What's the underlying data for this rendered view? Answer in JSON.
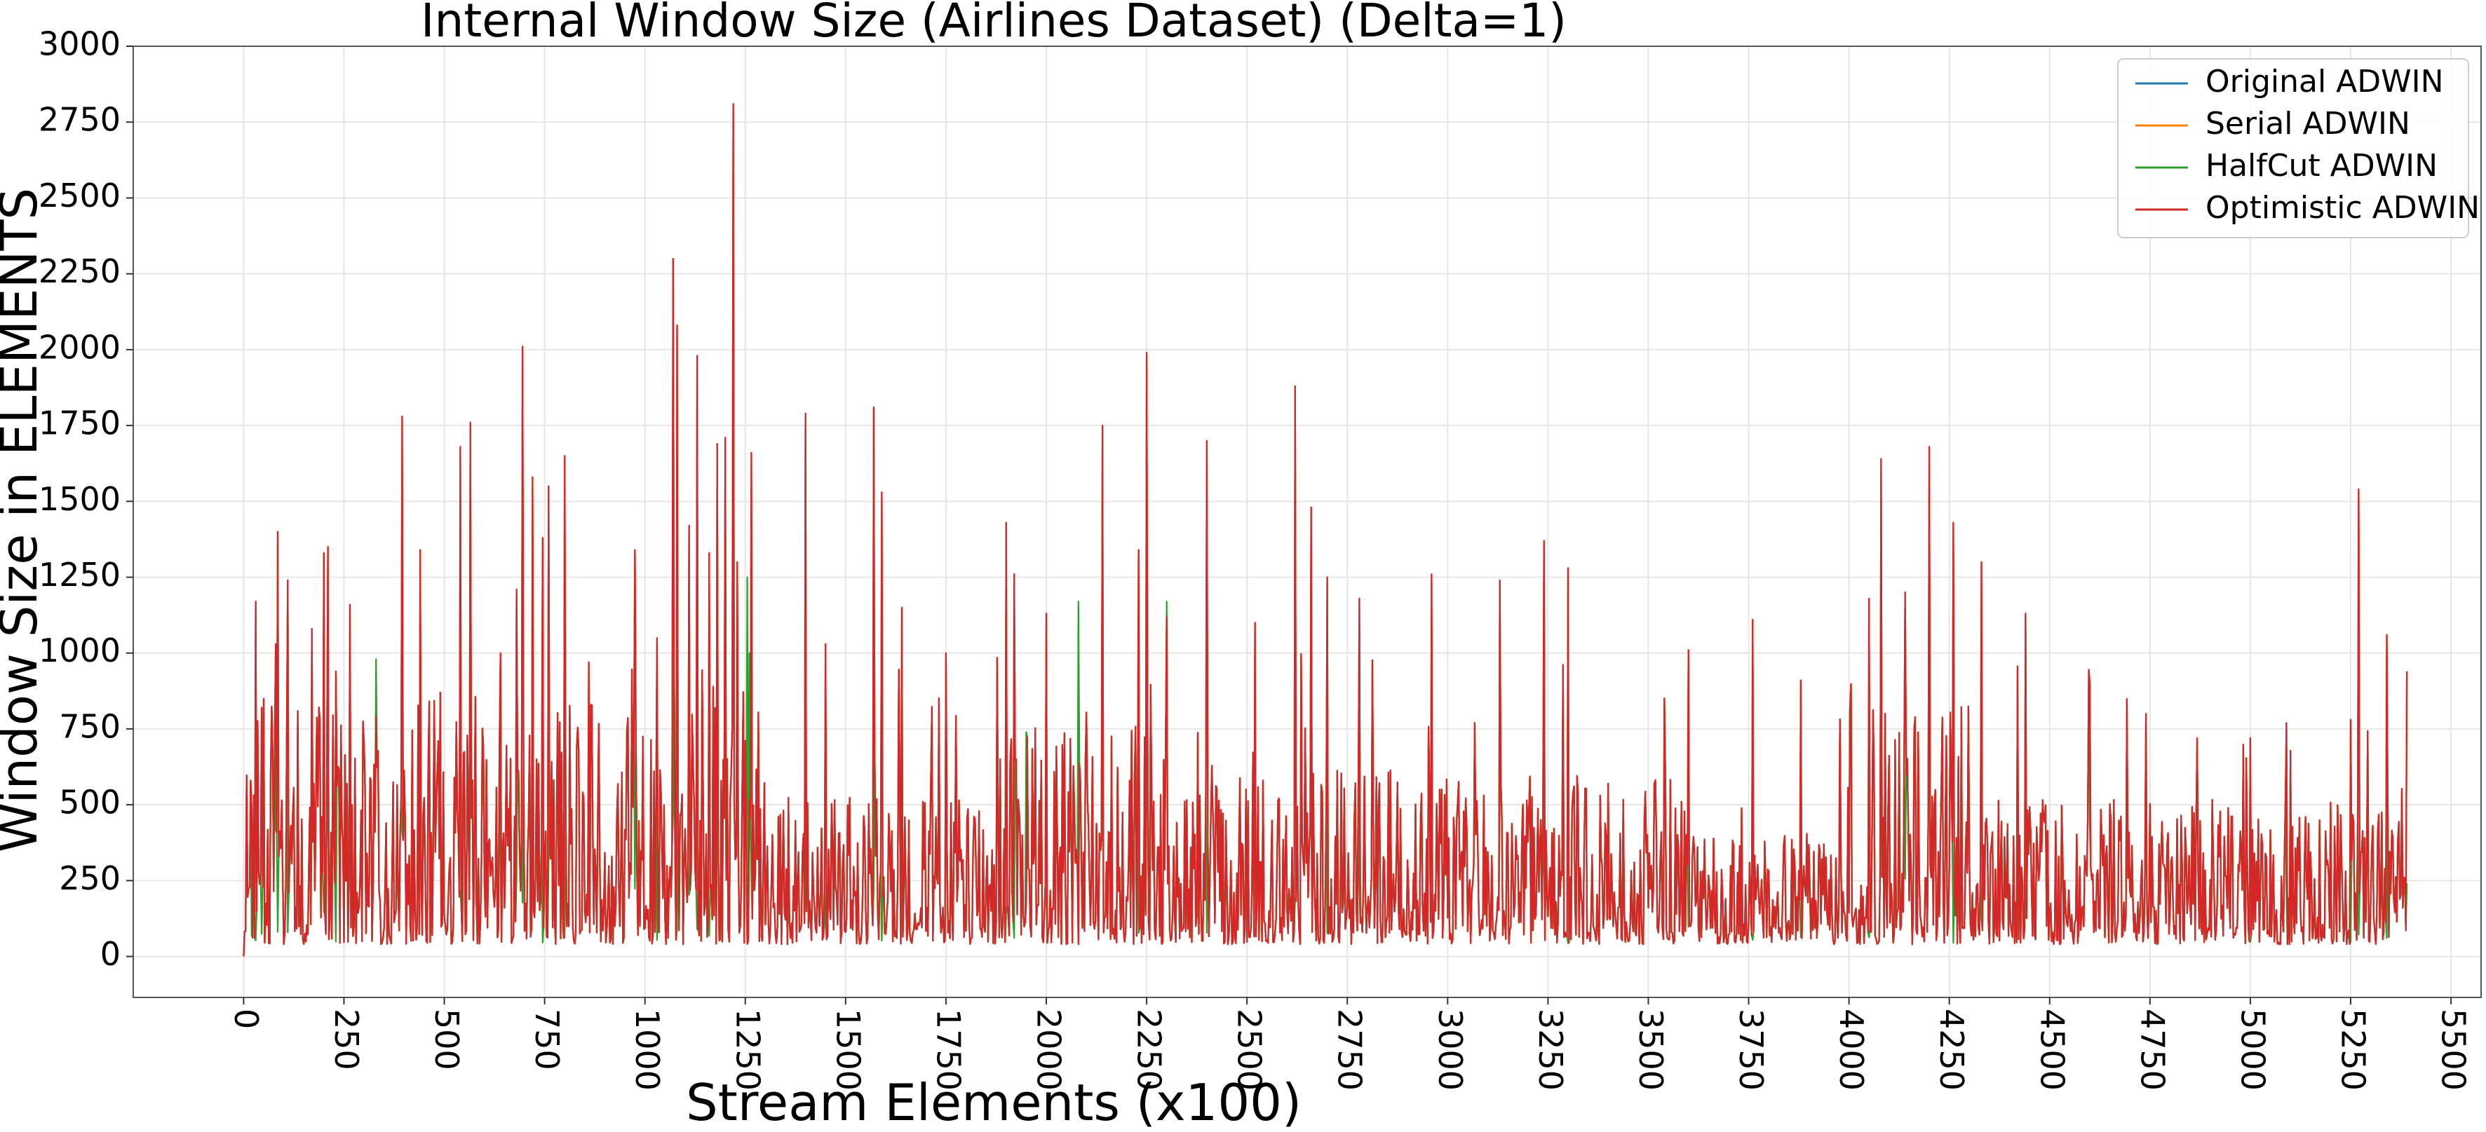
{
  "chart_data": {
    "type": "line",
    "title": "Internal Window Size (Airlines Dataset) (Delta=1)",
    "xlabel": "Stream Elements (x100)",
    "ylabel": "Window Size in ELEMENTS",
    "xlim": [
      -275,
      5575
    ],
    "ylim": [
      -135,
      3000
    ],
    "x_ticks": [
      0,
      250,
      500,
      750,
      1000,
      1250,
      1500,
      1750,
      2000,
      2250,
      2500,
      2750,
      3000,
      3250,
      3500,
      3750,
      4000,
      4250,
      4500,
      4750,
      5000,
      5250,
      5500
    ],
    "y_ticks": [
      0,
      250,
      500,
      750,
      1000,
      1250,
      1500,
      1750,
      2000,
      2250,
      2500,
      2750,
      3000
    ],
    "grid": true,
    "legend_position": "top-right",
    "x_range": [
      0,
      5390
    ],
    "series": [
      {
        "name": "Original ADWIN",
        "color": "#1f77b4"
      },
      {
        "name": "Serial ADWIN",
        "color": "#ff7f0e"
      },
      {
        "name": "HalfCut ADWIN",
        "color": "#2ca02c",
        "peaks": [
          [
            185,
            560
          ],
          [
            1220,
            1690
          ],
          [
            1255,
            1250
          ],
          [
            1260,
            1000
          ],
          [
            2140,
            1530
          ],
          [
            2080,
            1170
          ],
          [
            2300,
            1170
          ],
          [
            4200,
            950
          ],
          [
            330,
            980
          ],
          [
            1950,
            740
          ]
        ]
      },
      {
        "name": "Optimistic ADWIN",
        "color": "#d62728",
        "peaks": [
          [
            0,
            0
          ],
          [
            20,
            490
          ],
          [
            30,
            1170
          ],
          [
            45,
            820
          ],
          [
            80,
            1030
          ],
          [
            85,
            1400
          ],
          [
            110,
            1240
          ],
          [
            170,
            1080
          ],
          [
            200,
            1330
          ],
          [
            210,
            1350
          ],
          [
            230,
            940
          ],
          [
            265,
            1160
          ],
          [
            330,
            790
          ],
          [
            395,
            1780
          ],
          [
            440,
            1340
          ],
          [
            490,
            870
          ],
          [
            540,
            1680
          ],
          [
            565,
            1760
          ],
          [
            640,
            1000
          ],
          [
            680,
            1210
          ],
          [
            695,
            2010
          ],
          [
            720,
            1580
          ],
          [
            745,
            1380
          ],
          [
            760,
            1550
          ],
          [
            800,
            1650
          ],
          [
            860,
            970
          ],
          [
            975,
            1340
          ],
          [
            1030,
            1050
          ],
          [
            1070,
            2300
          ],
          [
            1080,
            2080
          ],
          [
            1110,
            1420
          ],
          [
            1130,
            1980
          ],
          [
            1160,
            1330
          ],
          [
            1180,
            1690
          ],
          [
            1200,
            1710
          ],
          [
            1220,
            2810
          ],
          [
            1230,
            1300
          ],
          [
            1265,
            1660
          ],
          [
            1400,
            1790
          ],
          [
            1450,
            1030
          ],
          [
            1570,
            1810
          ],
          [
            1590,
            1530
          ],
          [
            1640,
            1150
          ],
          [
            1750,
            1000
          ],
          [
            1900,
            1430
          ],
          [
            1920,
            1260
          ],
          [
            2000,
            1130
          ],
          [
            2140,
            1750
          ],
          [
            2230,
            1340
          ],
          [
            2250,
            1990
          ],
          [
            2300,
            1120
          ],
          [
            2400,
            1700
          ],
          [
            2520,
            1100
          ],
          [
            2620,
            1880
          ],
          [
            2660,
            1480
          ],
          [
            2700,
            1250
          ],
          [
            2780,
            1180
          ],
          [
            2960,
            1260
          ],
          [
            3130,
            1240
          ],
          [
            3240,
            1370
          ],
          [
            3300,
            1280
          ],
          [
            3600,
            1010
          ],
          [
            3760,
            1110
          ],
          [
            3880,
            910
          ],
          [
            4050,
            1180
          ],
          [
            4080,
            1640
          ],
          [
            4140,
            1200
          ],
          [
            4200,
            1680
          ],
          [
            4260,
            1430
          ],
          [
            4330,
            1300
          ],
          [
            4440,
            1130
          ],
          [
            4600,
            900
          ],
          [
            4740,
            800
          ],
          [
            5000,
            720
          ],
          [
            5090,
            770
          ],
          [
            5250,
            780
          ],
          [
            5270,
            1540
          ],
          [
            5340,
            1060
          ],
          [
            5390,
            940
          ]
        ]
      }
    ]
  }
}
